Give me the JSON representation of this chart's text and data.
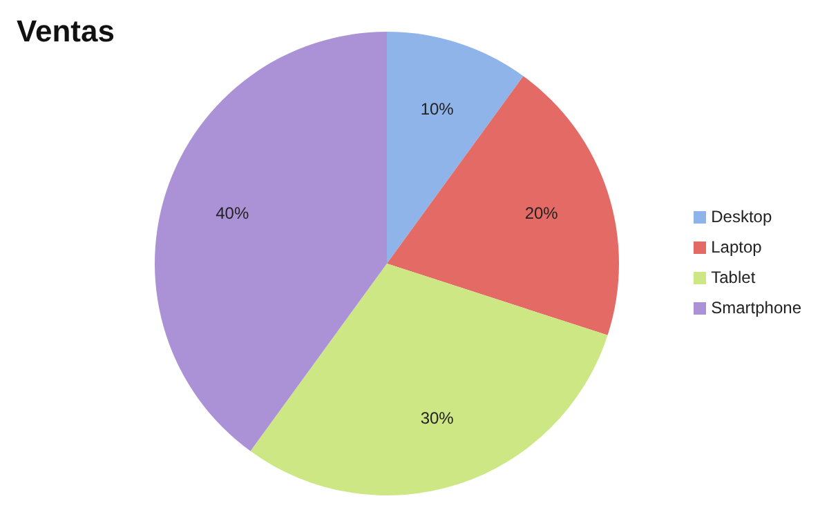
{
  "chart_data": {
    "type": "pie",
    "title": "Ventas",
    "categories": [
      "Desktop",
      "Laptop",
      "Tablet",
      "Smartphone"
    ],
    "values": [
      10,
      20,
      30,
      40
    ],
    "value_labels": [
      "10%",
      "20%",
      "30%",
      "40%"
    ],
    "colors": [
      "#8fb4ea",
      "#e46a66",
      "#cce784",
      "#ab92d6"
    ],
    "legend": "right"
  }
}
